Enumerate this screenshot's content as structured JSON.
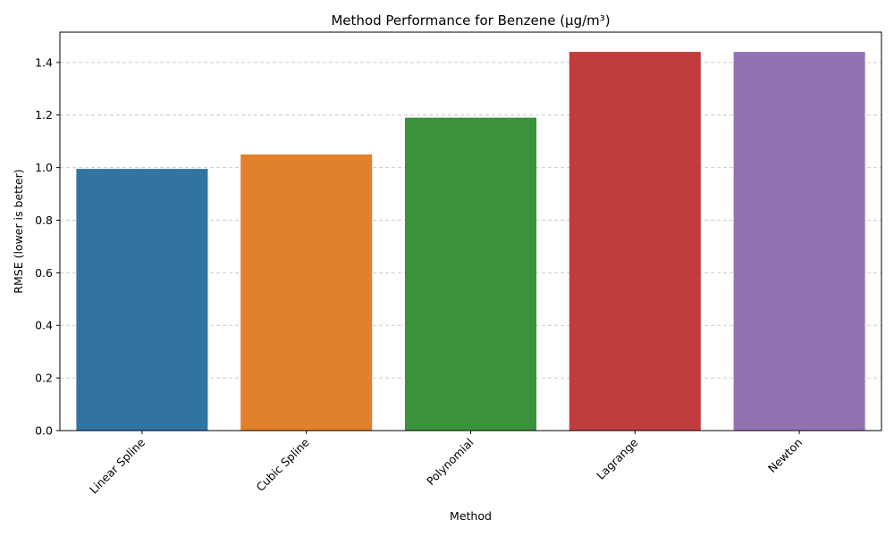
{
  "chart_data": {
    "type": "bar",
    "title": "Method Performance for Benzene (μg/m³)",
    "xlabel": "Method",
    "ylabel": "RMSE (lower is better)",
    "categories": [
      "Linear Spline",
      "Cubic Spline",
      "Polynomial",
      "Lagrange",
      "Newton"
    ],
    "values": [
      0.995,
      1.05,
      1.19,
      1.44,
      1.44
    ],
    "colors": [
      "#3274a1",
      "#e1812c",
      "#3a923a",
      "#c03d3e",
      "#9372b2"
    ],
    "ylim": [
      0,
      1.515
    ],
    "yticks": [
      "0.0",
      "0.2",
      "0.4",
      "0.6",
      "0.8",
      "1.0",
      "1.2",
      "1.4"
    ],
    "grid": "horizontal dashed",
    "xtick_rotation": 45
  }
}
